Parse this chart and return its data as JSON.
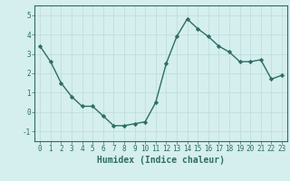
{
  "x": [
    0,
    1,
    2,
    3,
    4,
    5,
    6,
    7,
    8,
    9,
    10,
    11,
    12,
    13,
    14,
    15,
    16,
    17,
    18,
    19,
    20,
    21,
    22,
    23
  ],
  "y": [
    3.4,
    2.6,
    1.5,
    0.8,
    0.3,
    0.3,
    -0.2,
    -0.7,
    -0.7,
    -0.6,
    -0.5,
    0.5,
    2.5,
    3.9,
    4.8,
    4.3,
    3.9,
    3.4,
    3.1,
    2.6,
    2.6,
    2.7,
    1.7,
    1.9
  ],
  "line_color": "#2d6e63",
  "marker": "D",
  "marker_size": 2.2,
  "linewidth": 1.0,
  "xlabel": "Humidex (Indice chaleur)",
  "xlabel_fontsize": 7,
  "xlabel_fontweight": "bold",
  "ylim": [
    -1.5,
    5.5
  ],
  "xlim": [
    -0.5,
    23.5
  ],
  "yticks": [
    -1,
    0,
    1,
    2,
    3,
    4,
    5
  ],
  "xticks": [
    0,
    1,
    2,
    3,
    4,
    5,
    6,
    7,
    8,
    9,
    10,
    11,
    12,
    13,
    14,
    15,
    16,
    17,
    18,
    19,
    20,
    21,
    22,
    23
  ],
  "background_color": "#d5eeee",
  "grid_color": "#c0dede",
  "tick_fontsize": 5.5,
  "figure_bg": "#d5eeee",
  "spine_color": "#2d6e63"
}
